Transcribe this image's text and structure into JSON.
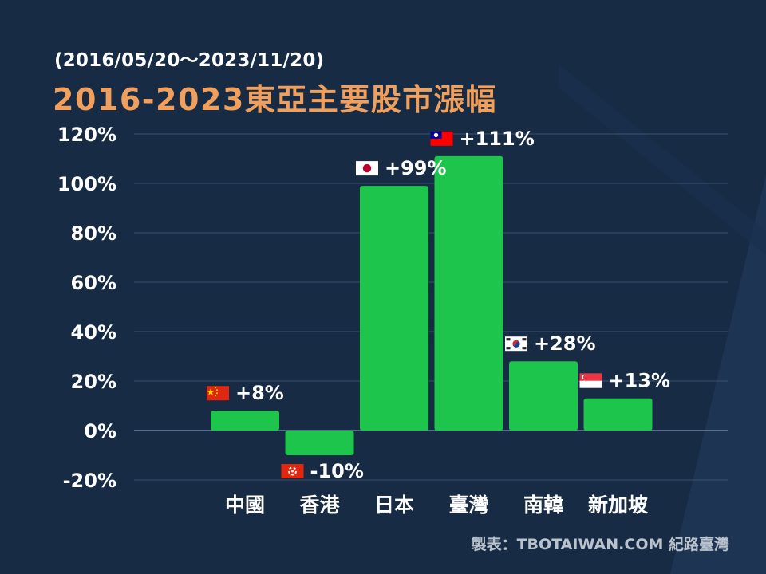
{
  "header": {
    "subtitle": "(2016/05/20～2023/11/20)",
    "title": "2016-2023東亞主要股市漲幅"
  },
  "footer": {
    "credit": "製表：TBOTAIWAN.COM 紀路臺灣"
  },
  "colors": {
    "background": "#172b45",
    "bar": "#1ec54c",
    "title": "#f0a05c",
    "text": "#ffffff",
    "grid": "#3a5270"
  },
  "chart_data": {
    "type": "bar",
    "categories": [
      "中國",
      "香港",
      "日本",
      "臺灣",
      "南韓",
      "新加坡"
    ],
    "values": [
      8,
      -10,
      99,
      111,
      28,
      13
    ],
    "data_labels": [
      "+8%",
      "-10%",
      "+99%",
      "+111%",
      "+28%",
      "+13%"
    ],
    "flags": [
      "china-flag-icon",
      "hong-kong-flag-icon",
      "japan-flag-icon",
      "taiwan-flag-icon",
      "south-korea-flag-icon",
      "singapore-flag-icon"
    ],
    "title": "2016-2023東亞主要股市漲幅",
    "subtitle": "(2016/05/20～2023/11/20)",
    "xlabel": "",
    "ylabel": "",
    "ylim": [
      -20,
      120
    ],
    "yticks": [
      120,
      100,
      80,
      60,
      40,
      20,
      0,
      -20
    ],
    "ytick_labels": [
      "120%",
      "100%",
      "80%",
      "60%",
      "40%",
      "20%",
      "0%",
      "-20%"
    ],
    "grid": true,
    "legend": "none"
  }
}
